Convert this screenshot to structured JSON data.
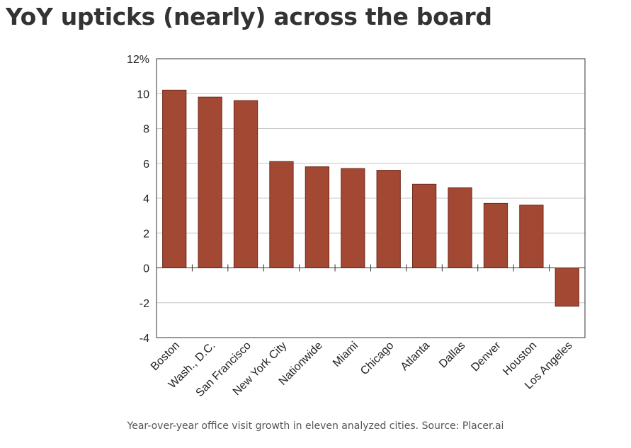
{
  "page": {
    "title": "YoY upticks (nearly) across the board",
    "caption": "Year-over-year office visit growth in eleven analyzed cities. Source: Placer.ai"
  },
  "colors": {
    "bar": "#a34833",
    "bar_stroke": "#6e2a1c",
    "grid": "#c8c8c8",
    "axis": "#333333",
    "text": "#222222"
  },
  "chart_data": {
    "type": "bar",
    "title": "",
    "xlabel": "",
    "ylabel": "",
    "ylim": [
      -4,
      12
    ],
    "ytick_values": [
      -4,
      -2,
      0,
      2,
      4,
      6,
      8,
      10,
      12
    ],
    "ytick_labels": [
      "-4",
      "-2",
      "0",
      "2",
      "4",
      "6",
      "8",
      "10",
      "12%"
    ],
    "grid": true,
    "categories": [
      "Boston",
      "Wash., D.C.",
      "San Francisco",
      "New York City",
      "Nationwide",
      "Miami",
      "Chicago",
      "Atlanta",
      "Dallas",
      "Denver",
      "Houston",
      "Los Angeles"
    ],
    "values": [
      10.2,
      9.8,
      9.6,
      6.1,
      5.8,
      5.7,
      5.6,
      4.8,
      4.6,
      3.7,
      3.6,
      -2.2
    ]
  }
}
